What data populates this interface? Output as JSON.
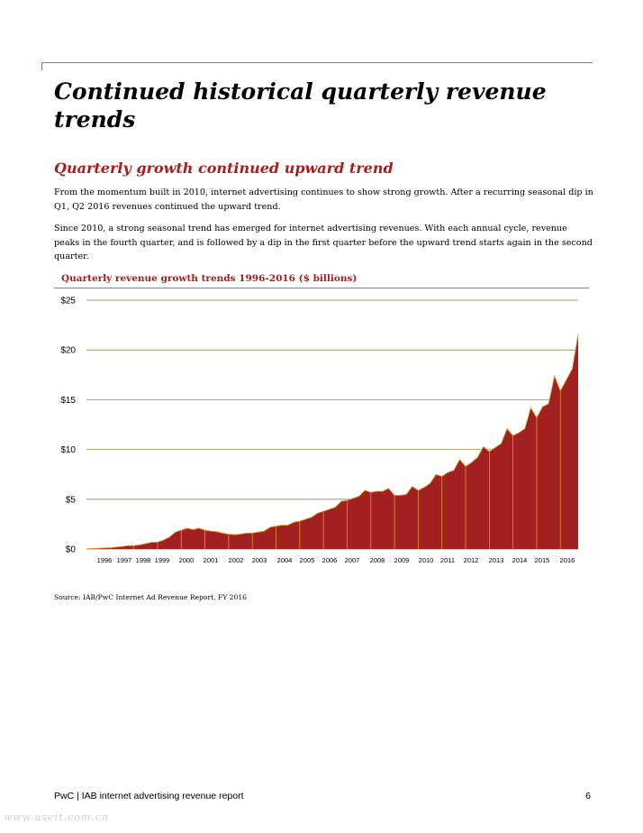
{
  "header": {
    "title": "Continued historical quarterly revenue trends"
  },
  "section": {
    "heading": "Quarterly growth continued upward trend",
    "paragraph_1": "From the momentum built in 2010, internet advertising continues to show strong growth. After a recurring seasonal dip in Q1, Q2 2016 revenues continued the upward trend.",
    "paragraph_2": "Since 2010, a strong seasonal trend has emerged for internet advertising revenues. With each annual cycle, revenue peaks in the fourth quarter, and is followed by a dip in the first quarter before the upward trend starts again in the second quarter."
  },
  "chart_data": {
    "type": "area",
    "title": "Quarterly revenue growth trends 1996-2016 ($ billions)",
    "xlabel": "",
    "ylabel": "",
    "ylim": [
      0,
      25
    ],
    "y_ticks": [
      "$0",
      "$5",
      "$10",
      "$15",
      "$20",
      "$25"
    ],
    "y_tick_values": [
      0,
      5,
      10,
      15,
      20,
      25
    ],
    "grid": true,
    "fill_color": "#a32020",
    "edge_color": "#e8a23a",
    "gridline_color": "#8f8a4e",
    "years": [
      "1996",
      "1997",
      "1998",
      "1999",
      "2000",
      "2001",
      "2002",
      "2003",
      "2004",
      "2005",
      "2006",
      "2007",
      "2008",
      "2009",
      "2010",
      "2011",
      "2012",
      "2013",
      "2014",
      "2015",
      "2016"
    ],
    "values": [
      0.03,
      0.05,
      0.07,
      0.11,
      0.13,
      0.2,
      0.25,
      0.35,
      0.35,
      0.42,
      0.55,
      0.68,
      0.7,
      0.9,
      1.2,
      1.7,
      1.9,
      2.1,
      1.95,
      2.1,
      1.9,
      1.8,
      1.75,
      1.6,
      1.5,
      1.45,
      1.5,
      1.6,
      1.6,
      1.7,
      1.8,
      2.2,
      2.3,
      2.4,
      2.4,
      2.7,
      2.8,
      3.0,
      3.2,
      3.6,
      3.8,
      4.0,
      4.2,
      4.8,
      4.9,
      5.1,
      5.3,
      5.9,
      5.7,
      5.8,
      5.8,
      6.1,
      5.4,
      5.4,
      5.5,
      6.3,
      5.9,
      6.2,
      6.6,
      7.5,
      7.3,
      7.7,
      7.9,
      9.0,
      8.3,
      8.7,
      9.2,
      10.3,
      9.8,
      10.2,
      10.6,
      12.1,
      11.4,
      11.7,
      12.1,
      14.2,
      13.2,
      14.3,
      14.6,
      17.4,
      15.9,
      17.0,
      18.1,
      21.6
    ]
  },
  "source": "Source: IAB/PwC Internet Ad Revenue Report, FY 2016",
  "footer": {
    "label": "PwC | IAB internet advertising revenue report",
    "page_number": "6"
  },
  "watermark": "www.useit.com.cn"
}
